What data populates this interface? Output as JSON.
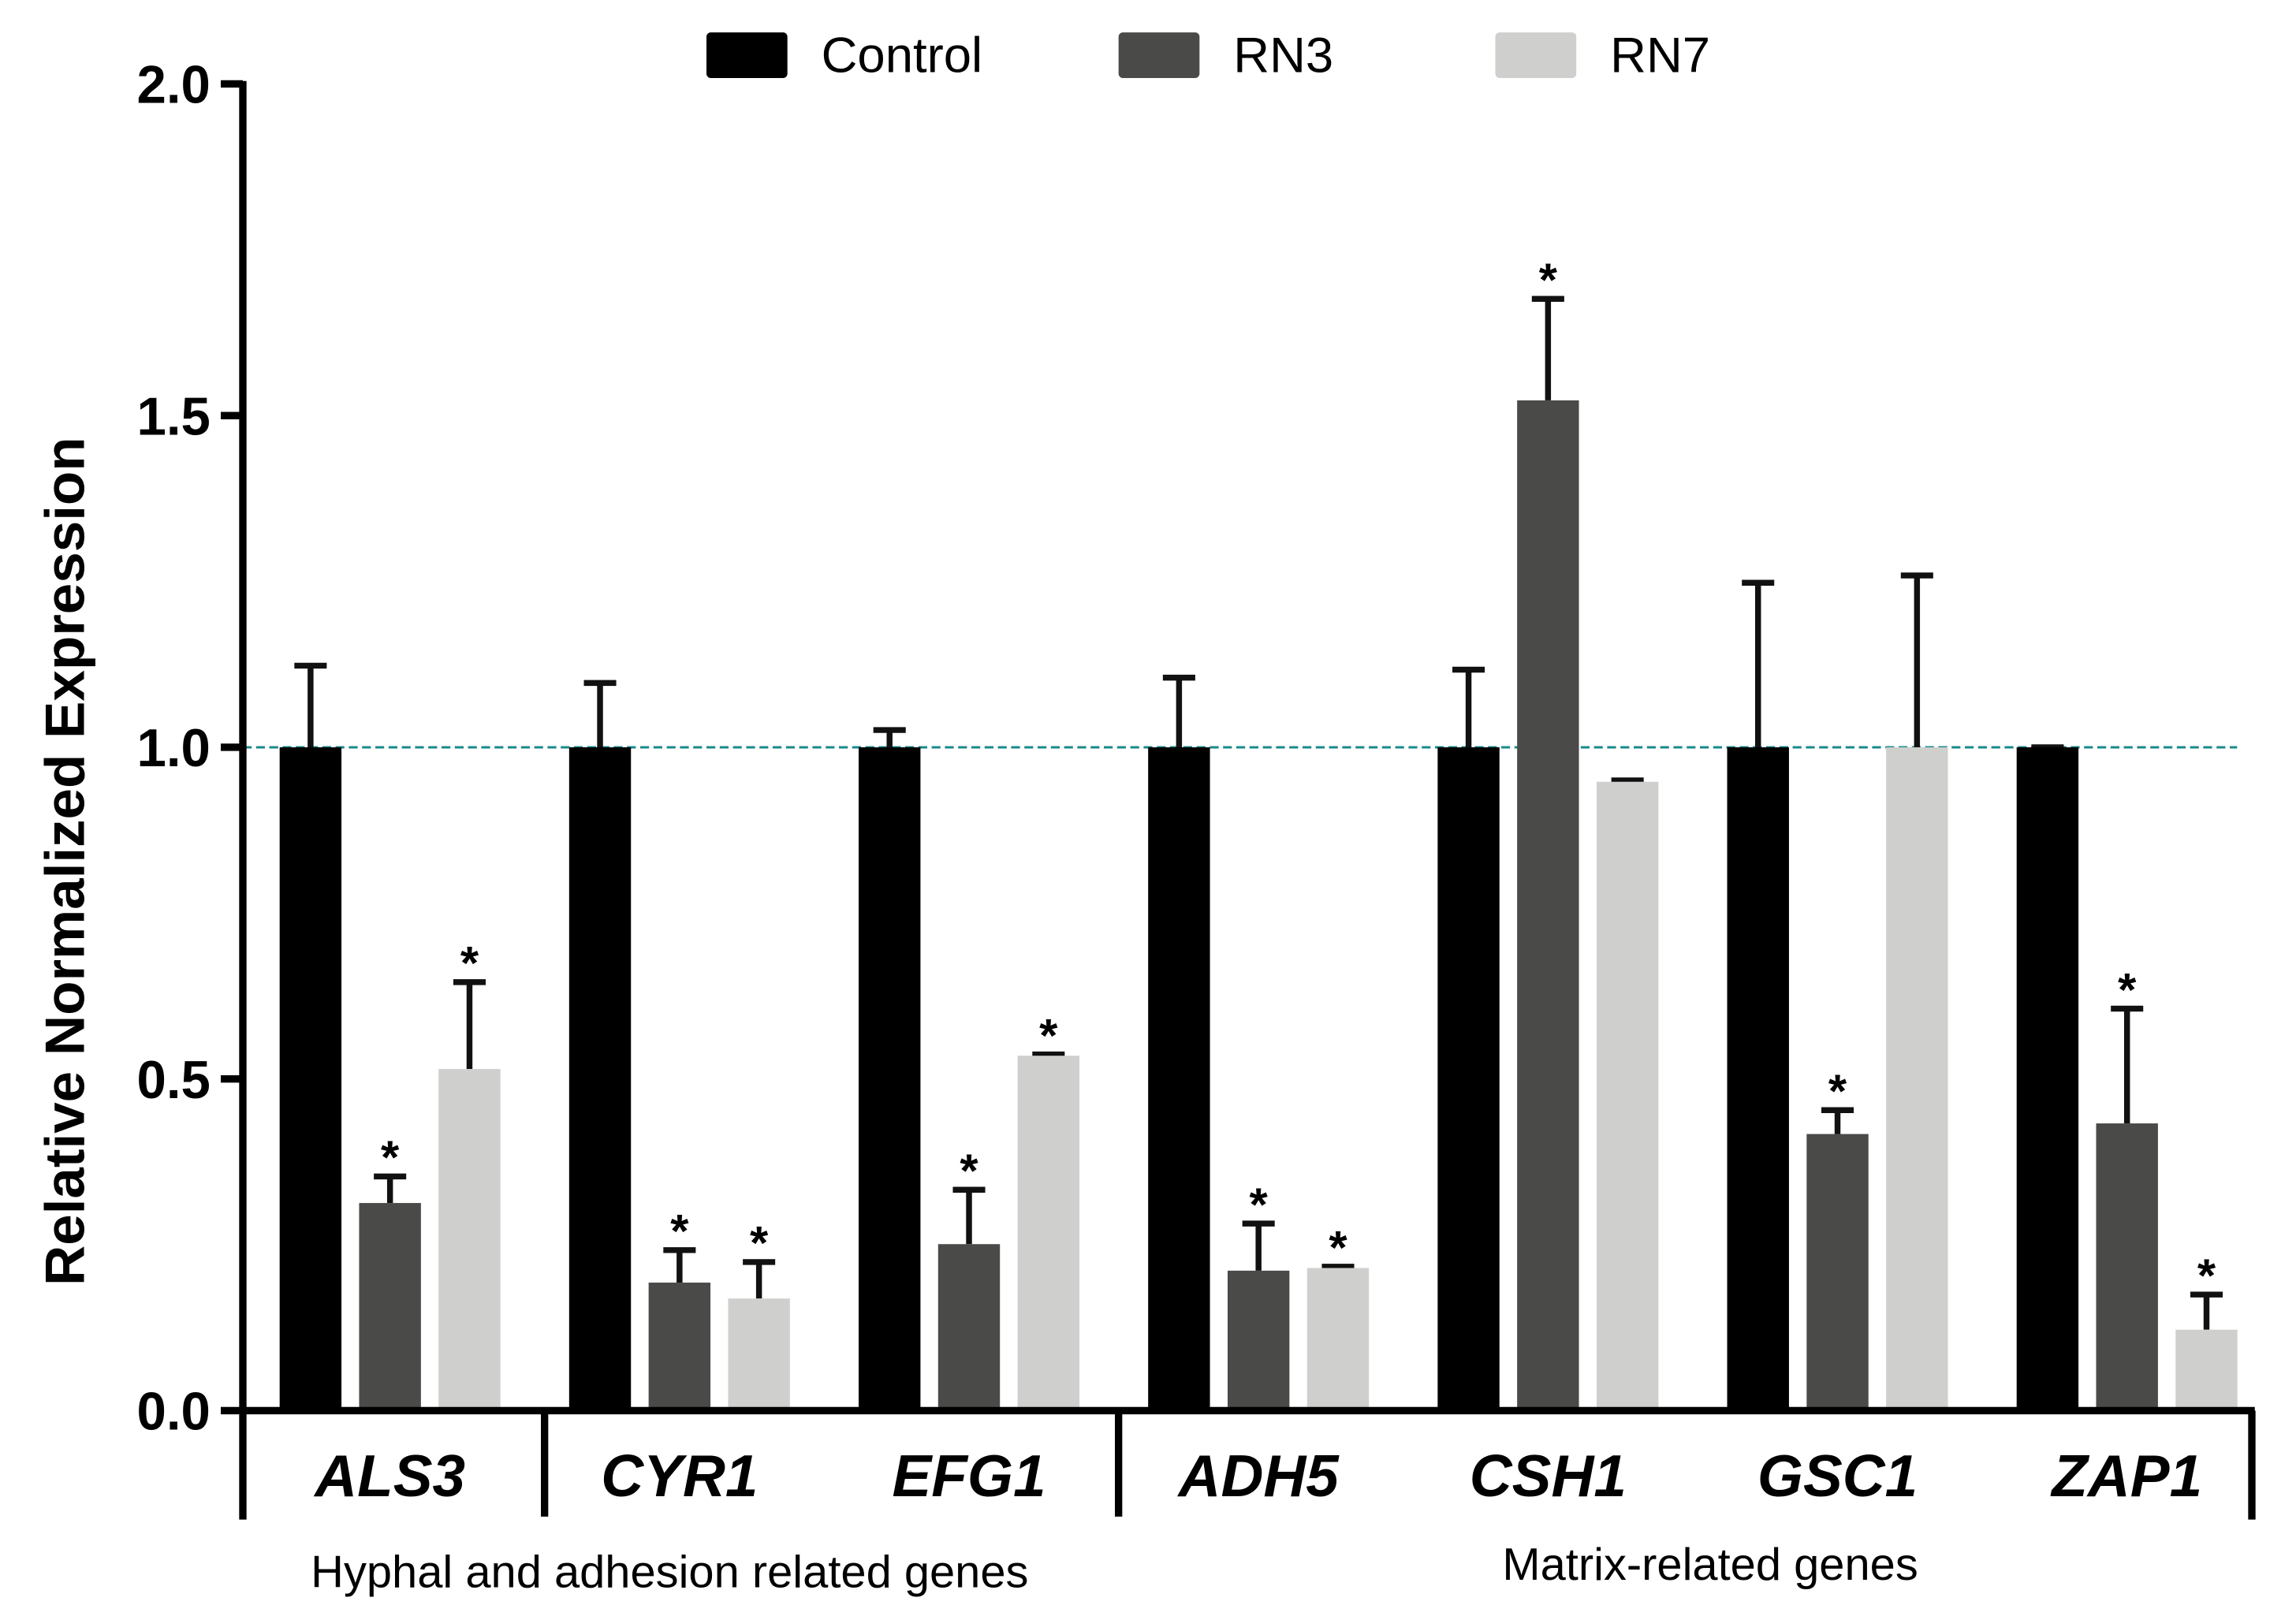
{
  "chart_data": {
    "type": "bar",
    "title": "",
    "ylabel": "Relative Normalized Expression",
    "xlabel": "",
    "ylim": [
      0,
      2.0
    ],
    "yticks": [
      "0.0",
      "0.5",
      "1.0",
      "1.5",
      "2.0"
    ],
    "ytick_values": [
      0,
      0.5,
      1.0,
      1.5,
      2.0
    ],
    "reference_line": 1.0,
    "reference_color": "#1a8a8a",
    "categories": [
      "ALS3",
      "CYR1",
      "EFG1",
      "ADH5",
      "CSH1",
      "GSC1",
      "ZAP1"
    ],
    "groups": [
      {
        "label": "Hyphal and adhesion related genes",
        "categories": [
          "ALS3",
          "CYR1",
          "EFG1"
        ]
      },
      {
        "label": "Matrix-related genes",
        "categories": [
          "ADH5",
          "CSH1",
          "GSC1",
          "ZAP1"
        ]
      }
    ],
    "legend_position": "top-center",
    "series": [
      {
        "name": "Control",
        "color": "#000000",
        "values": [
          1.0,
          1.0,
          1.0,
          1.0,
          1.0,
          1.0,
          1.0
        ],
        "error_upper": [
          1.123,
          1.097,
          1.026,
          1.105,
          1.117,
          1.248,
          1.0
        ],
        "significant": [
          false,
          false,
          false,
          false,
          false,
          false,
          false
        ]
      },
      {
        "name": "RN3",
        "color": "#4a4a48",
        "values": [
          0.313,
          0.193,
          0.251,
          0.211,
          1.523,
          0.417,
          0.433
        ],
        "error_upper": [
          0.353,
          0.242,
          0.333,
          0.282,
          1.676,
          0.453,
          0.606
        ],
        "significant": [
          true,
          true,
          true,
          true,
          true,
          true,
          true
        ]
      },
      {
        "name": "RN7",
        "color": "#cfcfcd",
        "values": [
          0.515,
          0.169,
          0.535,
          0.215,
          0.948,
          1.0,
          0.122
        ],
        "error_upper": [
          0.646,
          0.224,
          0.537,
          0.217,
          0.95,
          1.259,
          0.175
        ],
        "significant": [
          true,
          true,
          true,
          true,
          false,
          false,
          true
        ]
      }
    ],
    "significance_marker": "*"
  }
}
